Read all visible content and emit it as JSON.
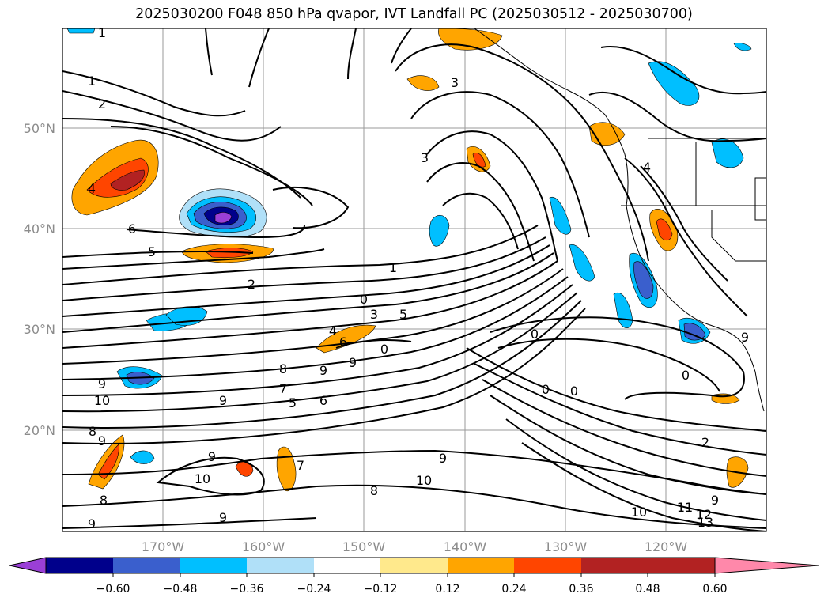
{
  "title": "2025030200 F048 850 hPa qvapor, IVT Landfall PC (2025030512 - 2025030700)",
  "map": {
    "lat_labels": [
      "50°N",
      "40°N",
      "30°N",
      "20°N"
    ],
    "lon_labels": [
      "170°W",
      "160°W",
      "150°W",
      "140°W",
      "130°W",
      "120°W"
    ],
    "contour_labels": [
      "1",
      "1",
      "2",
      "3",
      "3",
      "4",
      "4",
      "6",
      "5",
      "2",
      "1",
      "0",
      "5",
      "3",
      "4",
      "6",
      "9",
      "8",
      "9",
      "7",
      "5",
      "6",
      "9",
      "9",
      "10",
      "8",
      "9",
      "0",
      "0",
      "0",
      "0",
      "0",
      "9",
      "10",
      "11",
      "12",
      "13",
      "2",
      "9",
      "10",
      "9",
      "9",
      "7",
      "8",
      "10",
      "9",
      "9",
      "8"
    ]
  },
  "colorbar": {
    "ticks": [
      "−0.60",
      "−0.48",
      "−0.36",
      "−0.24",
      "−0.12",
      "0.12",
      "0.24",
      "0.36",
      "0.48",
      "0.60"
    ],
    "colors": [
      "#9a3fd6",
      "#00008b",
      "#3a5fcd",
      "#00bfff",
      "#b0e0f8",
      "#ffffff",
      "#ffe98c",
      "#ffa500",
      "#ff4500",
      "#b22222",
      "#ff88aa"
    ]
  }
}
